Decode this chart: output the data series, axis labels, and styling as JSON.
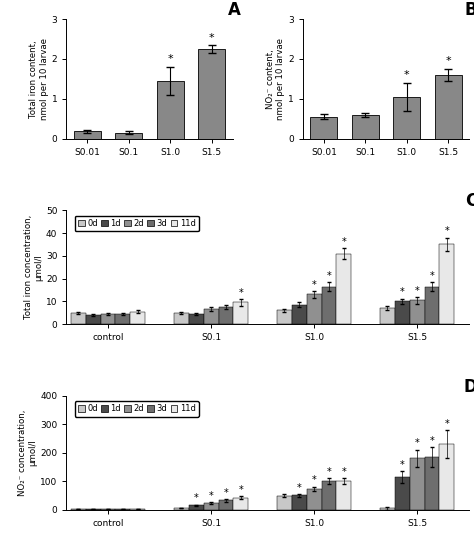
{
  "panel_A": {
    "label": "A",
    "categories": [
      "S0.01",
      "S0.1",
      "S1.0",
      "S1.5"
    ],
    "values": [
      0.18,
      0.15,
      1.45,
      2.25
    ],
    "errors": [
      0.04,
      0.04,
      0.35,
      0.1
    ],
    "star": [
      false,
      false,
      true,
      true
    ],
    "ylabel": "Total iron content,\nnmol per 10 larvae",
    "ylim": [
      0,
      3
    ],
    "yticks": [
      0,
      1,
      2,
      3
    ],
    "bar_color": "#888888"
  },
  "panel_B": {
    "label": "B",
    "categories": [
      "S0.01",
      "S0.1",
      "S1.0",
      "S1.5"
    ],
    "values": [
      0.55,
      0.58,
      1.05,
      1.6
    ],
    "errors": [
      0.06,
      0.05,
      0.35,
      0.15
    ],
    "star": [
      false,
      false,
      true,
      true
    ],
    "ylabel": "NO₂⁻ content,\nnmol per 10 larvae",
    "ylim": [
      0,
      3
    ],
    "yticks": [
      0,
      1,
      2,
      3
    ],
    "bar_color": "#888888"
  },
  "panel_C": {
    "label": "C",
    "group_labels": [
      "control",
      "S0.1",
      "S1.0",
      "S1.5"
    ],
    "series_labels": [
      "0d",
      "1d",
      "2d",
      "3d",
      "11d"
    ],
    "colors": [
      "#c8c8c8",
      "#4a4a4a",
      "#909090",
      "#6e6e6e",
      "#e8e8e8"
    ],
    "values": [
      [
        5.0,
        4.0,
        4.5,
        4.5,
        5.5
      ],
      [
        5.0,
        4.5,
        6.5,
        7.5,
        9.5
      ],
      [
        6.0,
        8.5,
        13.0,
        16.5,
        31.0
      ],
      [
        7.0,
        10.0,
        10.5,
        16.5,
        35.0
      ]
    ],
    "errors": [
      [
        0.5,
        0.4,
        0.5,
        0.5,
        0.8
      ],
      [
        0.5,
        0.5,
        0.8,
        1.0,
        1.5
      ],
      [
        0.8,
        1.0,
        1.5,
        2.0,
        2.5
      ],
      [
        1.0,
        1.2,
        1.5,
        2.0,
        3.0
      ]
    ],
    "star": [
      [
        false,
        false,
        false,
        false,
        false
      ],
      [
        false,
        false,
        false,
        false,
        true
      ],
      [
        false,
        false,
        true,
        true,
        true
      ],
      [
        false,
        true,
        true,
        true,
        true
      ]
    ],
    "ylabel": "Total iron concentration,\nμmol/l",
    "ylim": [
      0,
      50
    ],
    "yticks": [
      0,
      10,
      20,
      30,
      40,
      50
    ]
  },
  "panel_D": {
    "label": "D",
    "group_labels": [
      "control",
      "S0.1",
      "S1.0",
      "S1.5"
    ],
    "series_labels": [
      "0d",
      "1d",
      "2d",
      "3d",
      "11d"
    ],
    "colors": [
      "#c8c8c8",
      "#4a4a4a",
      "#909090",
      "#6e6e6e",
      "#e8e8e8"
    ],
    "values": [
      [
        3.0,
        2.0,
        3.0,
        3.0,
        3.0
      ],
      [
        5.0,
        15.0,
        22.0,
        32.0,
        42.0
      ],
      [
        48.0,
        50.0,
        72.0,
        100.0,
        100.0
      ],
      [
        5.0,
        115.0,
        180.0,
        185.0,
        230.0
      ]
    ],
    "errors": [
      [
        0.5,
        0.3,
        0.5,
        0.5,
        0.5
      ],
      [
        1.0,
        2.0,
        3.0,
        4.0,
        5.0
      ],
      [
        5.0,
        5.0,
        8.0,
        10.0,
        10.0
      ],
      [
        5.0,
        20.0,
        30.0,
        35.0,
        50.0
      ]
    ],
    "star": [
      [
        false,
        false,
        false,
        false,
        false
      ],
      [
        false,
        true,
        true,
        true,
        true
      ],
      [
        false,
        true,
        true,
        true,
        true
      ],
      [
        false,
        true,
        true,
        true,
        true
      ]
    ],
    "ylabel": "NO₂⁻ concentration,\nμmol/l",
    "ylim": [
      0,
      400
    ],
    "yticks": [
      0,
      100,
      200,
      300,
      400
    ]
  },
  "figure_bg": "#ffffff"
}
